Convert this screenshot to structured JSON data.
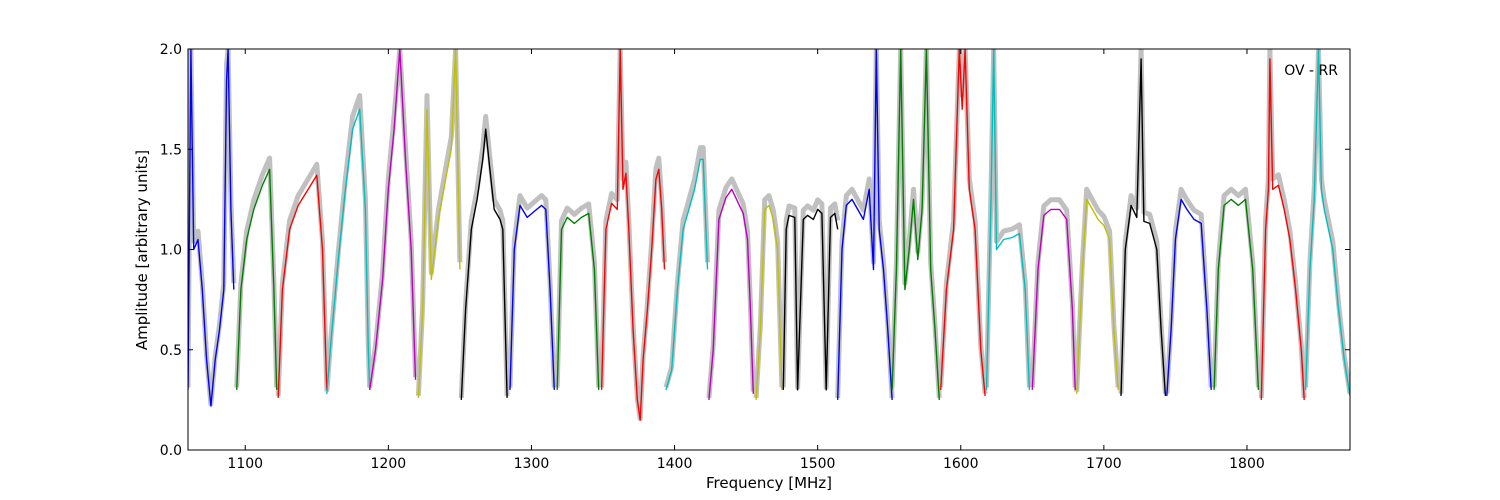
{
  "chart_data": {
    "type": "line",
    "title": "",
    "xlabel": "Frequency [MHz]",
    "ylabel": "Amplitude [arbitrary units]",
    "xlim": [
      1060,
      1872
    ],
    "ylim": [
      0.0,
      2.0
    ],
    "x_ticks": [
      1100,
      1200,
      1300,
      1400,
      1500,
      1600,
      1700,
      1800
    ],
    "y_ticks": [
      0.0,
      0.5,
      1.0,
      1.5,
      2.0
    ],
    "x_tick_labels": [
      "1100",
      "1200",
      "1300",
      "1400",
      "1500",
      "1600",
      "1700",
      "1800"
    ],
    "y_tick_labels": [
      "0.0",
      "0.5",
      "1.0",
      "1.5",
      "2.0"
    ],
    "annotation": "OV - RR",
    "grid": false,
    "legend": "none",
    "reference_color": "#c0c0c0",
    "series": [
      {
        "color": "#0000ff",
        "x": [
          1060,
          1062,
          1064,
          1067,
          1070,
          1073,
          1076,
          1079,
          1082,
          1085,
          1087,
          1088,
          1090,
          1092
        ],
        "y": [
          0.3,
          2.0,
          1.0,
          1.05,
          0.8,
          0.45,
          0.22,
          0.45,
          0.6,
          0.8,
          1.85,
          2.0,
          1.2,
          0.8
        ]
      },
      {
        "color": "#008000",
        "x": [
          1094,
          1097,
          1101,
          1106,
          1112,
          1117,
          1120,
          1122
        ],
        "y": [
          0.3,
          0.8,
          1.05,
          1.2,
          1.32,
          1.4,
          0.8,
          0.3
        ]
      },
      {
        "color": "#ff0000",
        "x": [
          1123,
          1126,
          1131,
          1137,
          1144,
          1150,
          1154,
          1157
        ],
        "y": [
          0.26,
          0.8,
          1.1,
          1.22,
          1.3,
          1.37,
          1.0,
          0.3
        ]
      },
      {
        "color": "#00bfbf",
        "x": [
          1157,
          1160,
          1165,
          1170,
          1175,
          1180,
          1184,
          1186,
          1187
        ],
        "y": [
          0.28,
          0.55,
          0.95,
          1.3,
          1.6,
          1.7,
          1.2,
          0.5,
          0.3
        ]
      },
      {
        "color": "#bf00bf",
        "x": [
          1187,
          1191,
          1196,
          1200,
          1204,
          1208,
          1212,
          1216,
          1219
        ],
        "y": [
          0.3,
          0.5,
          0.85,
          1.3,
          1.6,
          2.0,
          1.45,
          1.0,
          0.35
        ]
      },
      {
        "color": "#bfbf00",
        "x": [
          1221,
          1224,
          1227,
          1230,
          1235,
          1240,
          1244,
          1247,
          1250
        ],
        "y": [
          0.26,
          0.7,
          1.7,
          0.85,
          1.15,
          1.35,
          1.5,
          2.0,
          0.9
        ]
      },
      {
        "color": "#000000",
        "x": [
          1251,
          1254,
          1258,
          1262,
          1266,
          1268,
          1271,
          1274,
          1278,
          1280,
          1283
        ],
        "y": [
          0.25,
          0.7,
          1.1,
          1.25,
          1.45,
          1.6,
          1.4,
          1.2,
          1.15,
          1.1,
          0.26
        ]
      },
      {
        "color": "#0000ff",
        "x": [
          1285,
          1288,
          1292,
          1297,
          1302,
          1307,
          1310,
          1313,
          1316
        ],
        "y": [
          0.3,
          1.0,
          1.22,
          1.16,
          1.19,
          1.22,
          1.2,
          0.8,
          0.3
        ]
      },
      {
        "color": "#008000",
        "x": [
          1318,
          1321,
          1325,
          1330,
          1335,
          1340,
          1344,
          1347
        ],
        "y": [
          0.3,
          1.1,
          1.16,
          1.13,
          1.16,
          1.18,
          0.9,
          0.3
        ]
      },
      {
        "color": "#ff0000",
        "x": [
          1349,
          1352,
          1356,
          1360,
          1362,
          1364,
          1366,
          1368,
          1371,
          1374,
          1376,
          1378,
          1381,
          1384,
          1387,
          1389,
          1391,
          1393
        ],
        "y": [
          0.3,
          1.1,
          1.23,
          1.2,
          2.0,
          1.3,
          1.38,
          1.1,
          0.6,
          0.25,
          0.15,
          0.45,
          0.7,
          1.0,
          1.35,
          1.4,
          1.2,
          0.9
        ]
      },
      {
        "color": "#00bfbf",
        "x": [
          1394,
          1398,
          1402,
          1406,
          1410,
          1414,
          1418,
          1420,
          1423
        ],
        "y": [
          0.3,
          0.4,
          0.8,
          1.1,
          1.2,
          1.3,
          1.45,
          1.45,
          0.9
        ]
      },
      {
        "color": "#bf00bf",
        "x": [
          1424,
          1427,
          1431,
          1436,
          1440,
          1444,
          1448,
          1451,
          1453,
          1455
        ],
        "y": [
          0.25,
          0.5,
          1.15,
          1.26,
          1.3,
          1.24,
          1.18,
          1.05,
          0.7,
          0.28
        ]
      },
      {
        "color": "#bfbf00",
        "x": [
          1457,
          1460,
          1463,
          1466,
          1469,
          1472,
          1475
        ],
        "y": [
          0.25,
          0.6,
          1.2,
          1.22,
          1.15,
          1.0,
          0.3
        ]
      },
      {
        "color": "#000000",
        "x": [
          1476,
          1478,
          1480,
          1484,
          1486,
          1490,
          1493,
          1497,
          1500,
          1503,
          1506,
          1509,
          1512,
          1514
        ],
        "y": [
          0.3,
          1.1,
          1.17,
          1.16,
          0.3,
          1.15,
          1.17,
          1.15,
          1.2,
          1.18,
          0.3,
          1.16,
          1.18,
          1.1
        ]
      },
      {
        "color": "#0000ff",
        "x": [
          1514,
          1517,
          1520,
          1524,
          1528,
          1532,
          1536,
          1539,
          1541,
          1543,
          1546,
          1549,
          1552
        ],
        "y": [
          0.25,
          1.0,
          1.22,
          1.25,
          1.2,
          1.15,
          1.3,
          0.9,
          2.0,
          1.1,
          0.9,
          0.6,
          0.25
        ]
      },
      {
        "color": "#008000",
        "x": [
          1552,
          1555,
          1558,
          1561,
          1564,
          1567,
          1570,
          1573,
          1576,
          1579,
          1582,
          1585
        ],
        "y": [
          0.3,
          0.9,
          2.0,
          0.8,
          1.0,
          1.25,
          0.95,
          1.2,
          2.0,
          0.9,
          0.6,
          0.25
        ]
      },
      {
        "color": "#ff0000",
        "x": [
          1586,
          1590,
          1595,
          1599,
          1601,
          1603,
          1606,
          1610,
          1614,
          1617
        ],
        "y": [
          0.3,
          0.8,
          1.1,
          2.0,
          1.7,
          2.0,
          1.3,
          1.1,
          0.5,
          0.27
        ]
      },
      {
        "color": "#00bfbf",
        "x": [
          1618,
          1621,
          1623,
          1625,
          1630,
          1636,
          1641,
          1645,
          1648
        ],
        "y": [
          0.3,
          1.2,
          2.0,
          1.0,
          1.05,
          1.06,
          1.08,
          0.8,
          0.3
        ]
      },
      {
        "color": "#bf00bf",
        "x": [
          1650,
          1654,
          1658,
          1663,
          1669,
          1674,
          1678,
          1680
        ],
        "y": [
          0.3,
          0.9,
          1.17,
          1.2,
          1.2,
          1.15,
          0.7,
          0.3
        ]
      },
      {
        "color": "#bfbf00",
        "x": [
          1681,
          1685,
          1688,
          1692,
          1696,
          1700,
          1704,
          1707,
          1710
        ],
        "y": [
          0.28,
          0.9,
          1.25,
          1.2,
          1.15,
          1.12,
          1.05,
          0.6,
          0.3
        ]
      },
      {
        "color": "#000000",
        "x": [
          1712,
          1715,
          1719,
          1723,
          1726,
          1728,
          1732,
          1737,
          1740,
          1743
        ],
        "y": [
          0.27,
          1.0,
          1.22,
          1.16,
          1.95,
          1.14,
          1.13,
          1.0,
          0.6,
          0.27
        ]
      },
      {
        "color": "#0000ff",
        "x": [
          1744,
          1747,
          1750,
          1754,
          1758,
          1763,
          1768,
          1772,
          1775
        ],
        "y": [
          0.27,
          0.6,
          1.05,
          1.25,
          1.2,
          1.15,
          1.13,
          0.7,
          0.3
        ]
      },
      {
        "color": "#008000",
        "x": [
          1777,
          1780,
          1784,
          1789,
          1794,
          1799,
          1804,
          1808
        ],
        "y": [
          0.3,
          0.9,
          1.22,
          1.25,
          1.22,
          1.25,
          0.9,
          0.3
        ]
      },
      {
        "color": "#ff0000",
        "x": [
          1810,
          1813,
          1815,
          1816,
          1818,
          1822,
          1826,
          1830,
          1834,
          1838,
          1840
        ],
        "y": [
          0.25,
          1.1,
          1.3,
          1.95,
          1.3,
          1.32,
          1.2,
          1.05,
          0.8,
          0.5,
          0.25
        ]
      },
      {
        "color": "#00bfbf",
        "x": [
          1841,
          1844,
          1847,
          1850,
          1852,
          1854,
          1857,
          1860,
          1864,
          1868,
          1872
        ],
        "y": [
          0.3,
          0.9,
          1.25,
          2.0,
          1.3,
          1.2,
          1.1,
          1.0,
          0.7,
          0.45,
          0.27
        ]
      }
    ]
  }
}
